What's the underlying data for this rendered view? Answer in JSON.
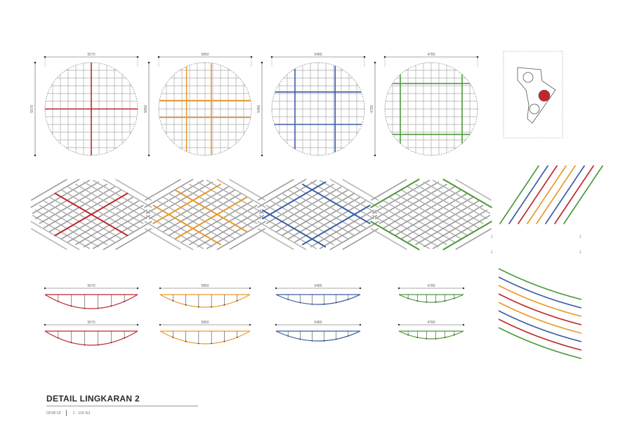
{
  "sheet": {
    "title": "DETAIL LINGKARAN 2",
    "drawing_code": "DD4F18",
    "scale": "1 : 100 A3"
  },
  "colors": {
    "grid": "#aaaaaa",
    "outline": "#888888",
    "red": "#c0272d",
    "orange": "#e89a2c",
    "blue": "#3a5da8",
    "green": "#4e9a3a"
  },
  "plans": [
    {
      "dimension_top": "5570",
      "dimension_side": "5570",
      "color": "red"
    },
    {
      "dimension_top": "5850",
      "dimension_side": "5850",
      "color": "orange"
    },
    {
      "dimension_top": "5480",
      "dimension_side": "5480",
      "color": "blue"
    },
    {
      "dimension_top": "4780",
      "dimension_side": "4780",
      "color": "green"
    }
  ],
  "sections": [
    {
      "label_top": "5570",
      "label_bottom": "5570",
      "color": "red"
    },
    {
      "label_top": "5850",
      "label_bottom": "5850",
      "color": "orange"
    },
    {
      "label_top": "5480",
      "label_bottom": "5480",
      "color": "blue"
    },
    {
      "label_top": "4780",
      "label_bottom": "4780",
      "color": "green"
    }
  ],
  "key_plan": {
    "highlight_color": "red"
  },
  "icons": {
    "arrow": "down-arrow-icon"
  }
}
